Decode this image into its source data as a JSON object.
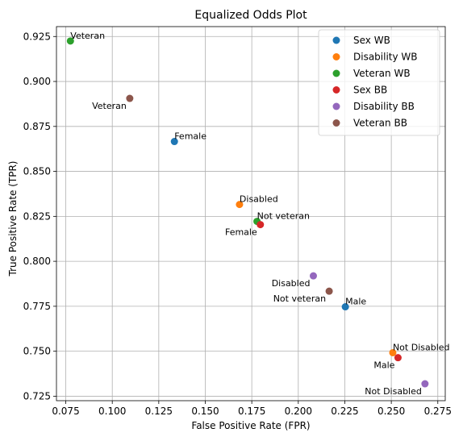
{
  "chart_data": {
    "type": "scatter",
    "title": "Equalized Odds Plot",
    "xlabel": "False Positive Rate (FPR)",
    "ylabel": "True Positive Rate (TPR)",
    "xlim": [
      0.07,
      0.279
    ],
    "ylim": [
      0.7225,
      0.9305
    ],
    "xticks": [
      "0.075",
      "0.100",
      "0.125",
      "0.150",
      "0.175",
      "0.200",
      "0.225",
      "0.250",
      "0.275"
    ],
    "xtick_values": [
      0.075,
      0.1,
      0.125,
      0.15,
      0.175,
      0.2,
      0.225,
      0.25,
      0.275
    ],
    "yticks": [
      "0.725",
      "0.750",
      "0.775",
      "0.800",
      "0.825",
      "0.850",
      "0.875",
      "0.900",
      "0.925"
    ],
    "ytick_values": [
      0.725,
      0.75,
      0.775,
      0.8,
      0.825,
      0.85,
      0.875,
      0.9,
      0.925
    ],
    "grid": true,
    "legend_position": "top-right",
    "series": [
      {
        "name": "Sex WB",
        "color": "#1f77b4",
        "points": [
          {
            "x": 0.1334,
            "y": 0.8666,
            "label": "Female",
            "anchor": "start",
            "dx": 0,
            "dy": -3
          },
          {
            "x": 0.2253,
            "y": 0.7747,
            "label": "Male",
            "anchor": "start",
            "dx": 0,
            "dy": -3
          }
        ]
      },
      {
        "name": "Disability WB",
        "color": "#ff7f0e",
        "points": [
          {
            "x": 0.1684,
            "y": 0.8316,
            "label": "Disabled",
            "anchor": "start",
            "dx": 0,
            "dy": -3
          },
          {
            "x": 0.2508,
            "y": 0.7492,
            "label": "Not Disabled",
            "anchor": "start",
            "dx": 0,
            "dy": -3
          }
        ]
      },
      {
        "name": "Veteran WB",
        "color": "#2ca02c",
        "points": [
          {
            "x": 0.0775,
            "y": 0.9225,
            "label": "Veteran",
            "anchor": "start",
            "dx": 0,
            "dy": -3
          },
          {
            "x": 0.1778,
            "y": 0.8222,
            "label": "Not veteran",
            "anchor": "start",
            "dx": 0,
            "dy": -3
          }
        ]
      },
      {
        "name": "Sex BB",
        "color": "#d62728",
        "points": [
          {
            "x": 0.1796,
            "y": 0.8204,
            "label": "Female",
            "anchor": "end",
            "dx": -4,
            "dy": 13
          },
          {
            "x": 0.2536,
            "y": 0.7464,
            "label": "Male",
            "anchor": "end",
            "dx": -4,
            "dy": 13
          }
        ]
      },
      {
        "name": "Disability BB",
        "color": "#9467bd",
        "points": [
          {
            "x": 0.2081,
            "y": 0.7919,
            "label": "Disabled",
            "anchor": "end",
            "dx": -4,
            "dy": 13
          },
          {
            "x": 0.2681,
            "y": 0.7319,
            "label": "Not Disabled",
            "anchor": "end",
            "dx": -4,
            "dy": 13
          }
        ]
      },
      {
        "name": "Veteran BB",
        "color": "#8c564b",
        "points": [
          {
            "x": 0.1094,
            "y": 0.8906,
            "label": "Veteran",
            "anchor": "end",
            "dx": -4,
            "dy": 13
          },
          {
            "x": 0.2166,
            "y": 0.7834,
            "label": "Not veteran",
            "anchor": "end",
            "dx": -4,
            "dy": 13
          }
        ]
      }
    ]
  }
}
